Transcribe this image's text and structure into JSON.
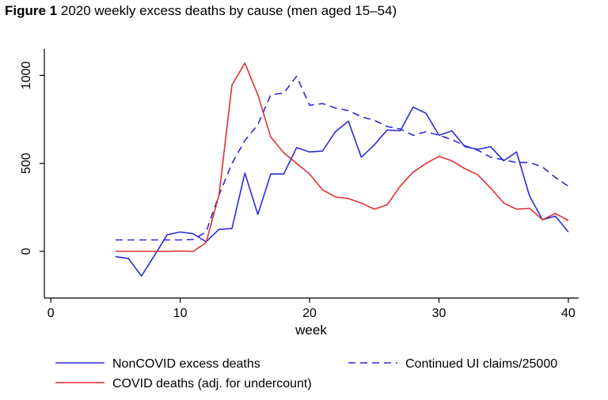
{
  "figure": {
    "number": "Figure 1",
    "title": "2020 weekly excess deaths by cause (men aged 15–54)"
  },
  "chart_data": {
    "type": "line",
    "xlabel": "week",
    "ylabel": "",
    "xlim": [
      -0.5,
      40.8
    ],
    "ylim": [
      -265,
      1150
    ],
    "xticks": [
      0,
      10,
      20,
      30,
      40
    ],
    "xtick_labels": [
      "0",
      "10",
      "20",
      "30",
      "40"
    ],
    "yticks": [
      0,
      500,
      1000
    ],
    "ytick_labels": [
      "0",
      "500",
      "1000"
    ],
    "grid": false,
    "legend_position": "bottom",
    "x": [
      5,
      6,
      7,
      8,
      9,
      10,
      11,
      12,
      13,
      14,
      15,
      16,
      17,
      18,
      19,
      20,
      21,
      22,
      23,
      24,
      25,
      26,
      27,
      28,
      29,
      30,
      31,
      32,
      33,
      34,
      35,
      36,
      37,
      38,
      39,
      40
    ],
    "series": [
      {
        "name": "NonCOVID excess deaths",
        "color": "#2b2bdb",
        "dash": "solid",
        "values": [
          -30,
          -40,
          -140,
          -25,
          95,
          110,
          100,
          55,
          125,
          130,
          445,
          210,
          440,
          440,
          590,
          565,
          570,
          680,
          740,
          535,
          605,
          690,
          685,
          820,
          785,
          660,
          685,
          595,
          580,
          595,
          515,
          565,
          315,
          180,
          200,
          110
        ]
      },
      {
        "name": "Continued UI claims/25000",
        "color": "#2b2bdb",
        "dash": "dashed",
        "values": [
          65,
          65,
          65,
          65,
          65,
          65,
          68,
          110,
          320,
          500,
          630,
          720,
          890,
          900,
          995,
          830,
          840,
          815,
          800,
          765,
          745,
          710,
          695,
          660,
          680,
          660,
          635,
          600,
          575,
          535,
          520,
          505,
          505,
          480,
          420,
          370
        ]
      },
      {
        "name": "COVID deaths (adj. for undercount)",
        "color": "#e03030",
        "dash": "solid",
        "values": [
          0,
          0,
          0,
          0,
          0,
          2,
          0,
          50,
          320,
          945,
          1070,
          890,
          650,
          560,
          500,
          440,
          350,
          310,
          300,
          275,
          240,
          265,
          370,
          450,
          500,
          540,
          515,
          470,
          435,
          360,
          275,
          240,
          245,
          180,
          215,
          175
        ]
      }
    ]
  }
}
